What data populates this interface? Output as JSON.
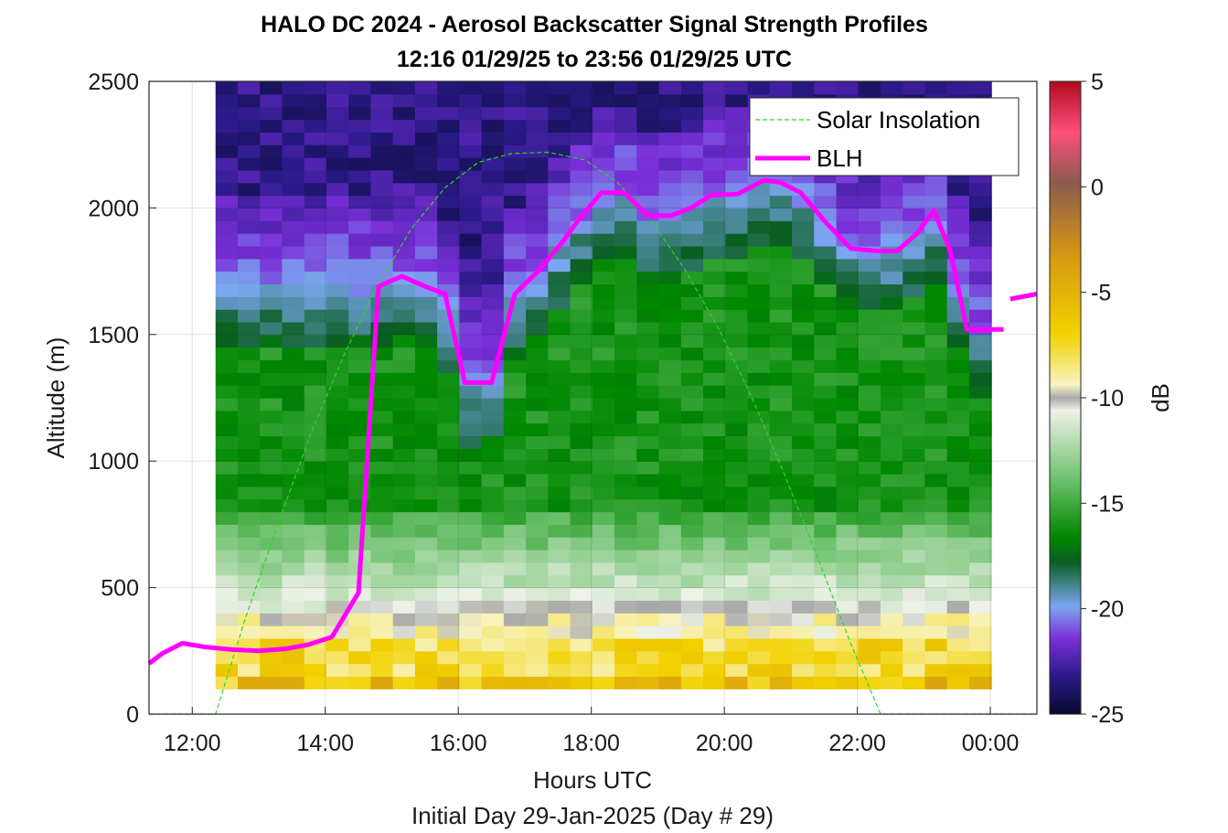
{
  "chart_data": {
    "type": "heatmap",
    "title": "HALO DC 2024 - Aerosol Backscatter Signal Strength Profiles",
    "subtitle": "12:16 01/29/25 to 23:56 01/29/25  UTC",
    "xlabel": "Hours UTC",
    "xlabel2": "Initial Day 29-Jan-2025 (Day # 29)",
    "ylabel": "Altitude (m)",
    "xlim": [
      11.35,
      24.7
    ],
    "ylim": [
      0,
      2500
    ],
    "x_ticks": [
      12,
      14,
      16,
      18,
      20,
      22,
      24
    ],
    "x_tick_labels": [
      "12:00",
      "14:00",
      "16:00",
      "18:00",
      "20:00",
      "22:00",
      "00:00"
    ],
    "y_ticks": [
      0,
      500,
      1000,
      1500,
      2000,
      2500
    ],
    "y_tick_labels": [
      "0",
      "500",
      "1000",
      "1500",
      "2000",
      "2500"
    ],
    "grid": true,
    "colorbar": {
      "label": "dB",
      "range": [
        -25,
        5
      ],
      "ticks": [
        5,
        0,
        -5,
        -10,
        -15,
        -20,
        -25
      ],
      "tick_labels": [
        "5",
        "0",
        "-5",
        "-10",
        "-15",
        "-20",
        "-25"
      ]
    },
    "heatmap": {
      "x_start": 12.35,
      "x_step": 0.3333,
      "n_cols": 35,
      "y_start": 100,
      "y_step": 50,
      "n_rows": 48,
      "description_levels_db": {
        "near_surface_100_300m": -8,
        "mixed_layer": -15,
        "upper_transition": -19,
        "free_troposphere": -23
      }
    },
    "series": [
      {
        "name": "Solar Insolation",
        "style": "dashed",
        "color": "#22dd22",
        "x": [
          11.35,
          12.35,
          12.8,
          13.3,
          13.8,
          14.3,
          14.8,
          15.3,
          15.8,
          16.3,
          16.8,
          17.35,
          17.9,
          18.4,
          18.9,
          19.4,
          19.9,
          20.4,
          20.9,
          21.4,
          21.9,
          22.35,
          23,
          24,
          24.7
        ],
        "y": [
          0,
          0,
          380,
          760,
          1120,
          1430,
          1700,
          1920,
          2080,
          2180,
          2215,
          2220,
          2190,
          2100,
          1950,
          1760,
          1530,
          1260,
          950,
          620,
          280,
          0,
          0,
          0,
          0
        ]
      },
      {
        "name": "BLH",
        "style": "solid",
        "color": "#ff00ff",
        "x": [
          11.35,
          11.55,
          11.85,
          12.2,
          12.6,
          13.0,
          13.4,
          13.75,
          14.1,
          14.5,
          14.8,
          15.15,
          15.5,
          15.8,
          16.1,
          16.5,
          16.85,
          17.2,
          17.55,
          17.8,
          18.15,
          18.5,
          18.85,
          19.2,
          19.5,
          19.8,
          20.2,
          20.6,
          20.85,
          21.15,
          21.5,
          21.9,
          22.3,
          22.6,
          22.9,
          23.15,
          23.4,
          23.65,
          23.9,
          24.2
        ],
        "y": [
          200,
          240,
          280,
          265,
          255,
          250,
          258,
          275,
          305,
          480,
          1690,
          1730,
          1690,
          1660,
          1310,
          1310,
          1660,
          1750,
          1860,
          1950,
          2060,
          2060,
          1970,
          1970,
          2000,
          2050,
          2055,
          2110,
          2100,
          2060,
          1950,
          1840,
          1830,
          1830,
          1900,
          1990,
          1830,
          1520,
          1520,
          1520
        ],
        "trailing_segment": {
          "x": [
            24.3,
            24.7
          ],
          "y": [
            1640,
            1660
          ]
        }
      }
    ],
    "legend": {
      "placement": "top-right",
      "entries": [
        "Solar Insolation",
        "BLH"
      ]
    }
  }
}
